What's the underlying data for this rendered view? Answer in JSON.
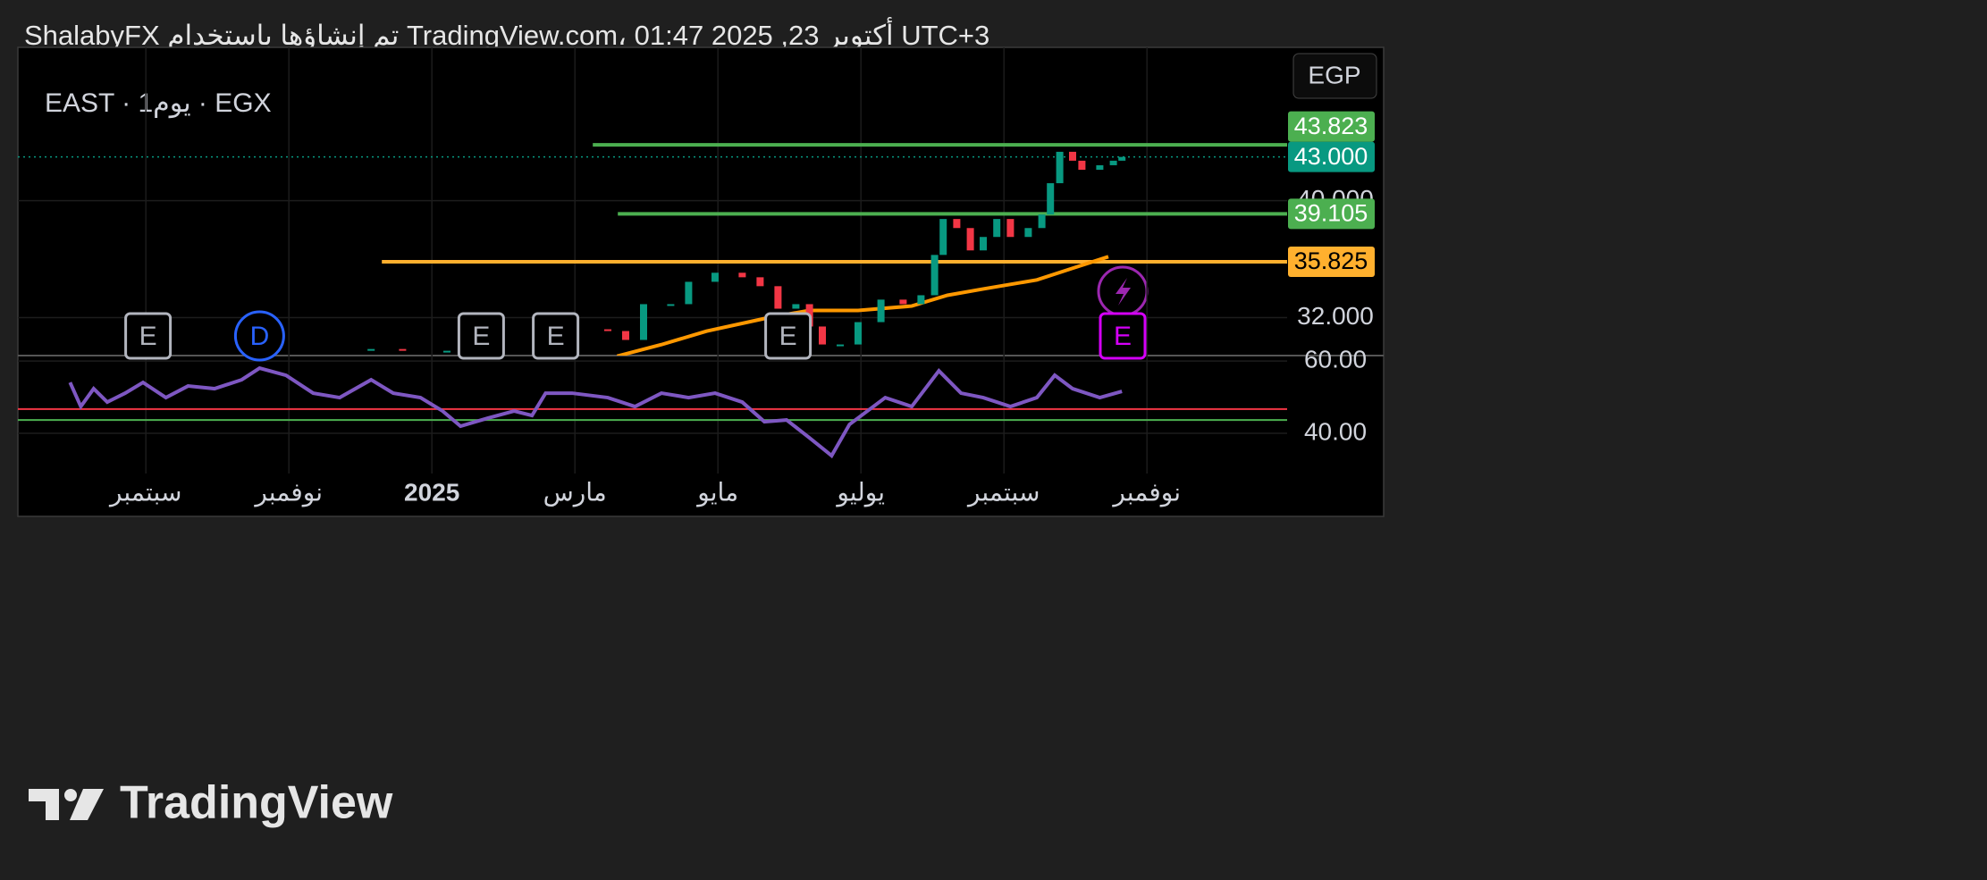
{
  "header": "ShalabyFX تم إنشاؤها باستخدام TradingView.com، 01:47 2025 ,23 أكتوبر UTC+3",
  "logo": "TradingView",
  "chart_data": {
    "type": "candlestick",
    "symbol": "EAST · 1يوم · EGX",
    "currency": "EGP",
    "up_color": "#089981",
    "down_color": "#f23645",
    "x": [
      3.15,
      3.59,
      4.21,
      4.96,
      5.59,
      5.96,
      6.46,
      6.71,
      6.96,
      7.34,
      7.59,
      7.96,
      8.34,
      8.59,
      8.84,
      9.09,
      9.28,
      9.46,
      9.71,
      9.96,
      10.28,
      10.59,
      10.84,
      11.03,
      11.15,
      11.34,
      11.53,
      11.71,
      11.9,
      12.09,
      12.34,
      12.53,
      12.65,
      12.78,
      12.96,
      13.09,
      13.34,
      13.53,
      13.65
    ],
    "close": [
      29.85,
      29.73,
      29.73,
      29.55,
      29.67,
      31.2,
      31.08,
      30.47,
      32.92,
      32.92,
      34.45,
      35.07,
      34.76,
      34.15,
      32.61,
      32.92,
      31.39,
      30.16,
      30.16,
      31.69,
      33.23,
      32.92,
      33.53,
      36.29,
      38.75,
      38.13,
      36.6,
      37.52,
      38.75,
      37.52,
      38.13,
      39.06,
      41.2,
      43.35,
      42.74,
      42.12,
      42.43,
      42.74,
      43.0
    ],
    "xlim": [
      -1.79,
      15.96
    ],
    "xticks": [
      {
        "value": 0,
        "label": "سبتمبر"
      },
      {
        "value": 2,
        "label": "نوفمبر"
      },
      {
        "value": 4,
        "label": "2025"
      },
      {
        "value": 6,
        "label": "مارس"
      },
      {
        "value": 8,
        "label": "مايو"
      },
      {
        "value": 10,
        "label": "يوليو"
      },
      {
        "value": 12,
        "label": "سبتمبر"
      },
      {
        "value": 14,
        "label": "نوفمبر"
      }
    ],
    "ylim": [
      29.4,
      50.5
    ],
    "yticks": [
      {
        "value": 32,
        "label": "32.000"
      },
      {
        "value": 40,
        "label": "40.000"
      }
    ],
    "grid": true,
    "last_price": {
      "value": 43,
      "label": "43.000",
      "color": "#089981"
    },
    "levels": [
      {
        "value": 43.823,
        "color": "#4caf50",
        "start": 6.25
      },
      {
        "value": 39.105,
        "color": "#4caf50",
        "start": 6.6
      },
      {
        "value": 35.825,
        "color": "#ffb02e",
        "start": 3.3
      }
    ],
    "moving_average": {
      "color": "#ff9800",
      "x": [
        6.59,
        7.21,
        7.84,
        8.71,
        9.28,
        9.96,
        10.71,
        11.21,
        11.71,
        12.46,
        12.96,
        13.46
      ],
      "values": [
        29.36,
        30.15,
        31.07,
        32.0,
        32.49,
        32.49,
        32.79,
        33.53,
        33.96,
        34.58,
        35.38,
        36.17
      ]
    },
    "rsi": {
      "color": "#7e57c2",
      "x": [
        -1.06,
        -0.91,
        -0.73,
        -0.54,
        -0.29,
        -0.04,
        0.28,
        0.59,
        0.96,
        1.34,
        1.59,
        1.96,
        2.34,
        2.71,
        3.15,
        3.46,
        3.84,
        4.15,
        4.4,
        4.78,
        5.15,
        5.4,
        5.59,
        5.96,
        6.46,
        6.84,
        7.21,
        7.59,
        7.96,
        8.34,
        8.65,
        8.96,
        9.28,
        9.59,
        9.84,
        10.09,
        10.34,
        10.71,
        11.09,
        11.4,
        11.71,
        12.09,
        12.46,
        12.71,
        12.96,
        13.34,
        13.65
      ],
      "values": [
        54.07,
        47.41,
        52.35,
        48.64,
        51.11,
        54.07,
        49.88,
        53.09,
        52.35,
        54.81,
        58.02,
        56.05,
        51.11,
        49.88,
        54.81,
        51.11,
        49.88,
        46.17,
        41.98,
        44.2,
        46.17,
        44.94,
        51.11,
        51.11,
        49.88,
        47.41,
        51.11,
        49.88,
        51.11,
        48.64,
        43.21,
        43.7,
        38.77,
        33.83,
        42.47,
        46.17,
        49.88,
        47.41,
        57.28,
        51.11,
        49.88,
        47.41,
        49.88,
        56.05,
        52.35,
        49.88,
        51.6
      ],
      "ylim": [
        28.9,
        61.5
      ],
      "yticks": [
        {
          "value": 60,
          "label": "60.00"
        },
        {
          "value": 40,
          "label": "40.00"
        }
      ],
      "levels": [
        {
          "value": 46.7,
          "color": "#f23645"
        },
        {
          "value": 43.7,
          "color": "#4caf50"
        }
      ]
    },
    "events": [
      {
        "x": 0.03,
        "label": "E",
        "color": "#b2b5be"
      },
      {
        "x": 1.59,
        "label": "D",
        "color": "#2962ff"
      },
      {
        "x": 4.69,
        "label": "E",
        "color": "#b2b5be"
      },
      {
        "x": 5.73,
        "label": "E",
        "color": "#b2b5be"
      },
      {
        "x": 8.98,
        "label": "E",
        "color": "#b2b5be"
      },
      {
        "x": 13.66,
        "label": "E",
        "color": "#d500f9"
      }
    ]
  }
}
